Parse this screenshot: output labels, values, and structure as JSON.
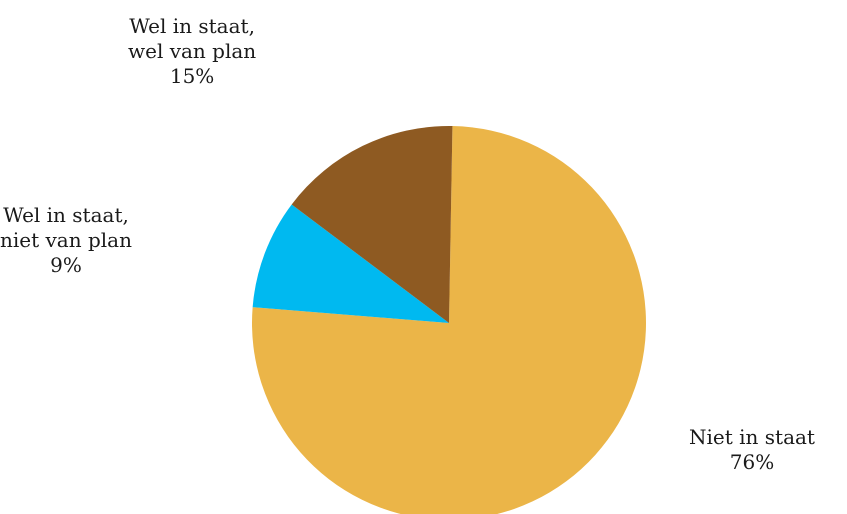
{
  "chart_data": {
    "type": "pie",
    "title": "",
    "slices": [
      {
        "label": "Niet in staat",
        "label_lines": [
          "Niet in staat"
        ],
        "value": 76,
        "value_label": "76%",
        "color": "#EBB548"
      },
      {
        "label": "Wel in staat, niet van plan",
        "label_lines": [
          "Wel in staat,",
          "niet van plan"
        ],
        "value": 9,
        "value_label": "9%",
        "color": "#00B9F0"
      },
      {
        "label": "Wel in staat, wel van plan",
        "label_lines": [
          "Wel in staat,",
          "wel van plan"
        ],
        "value": 15,
        "value_label": "15%",
        "color": "#8E5A22"
      }
    ],
    "start_angle_deg": 1,
    "direction": "clockwise",
    "legend": "none"
  }
}
